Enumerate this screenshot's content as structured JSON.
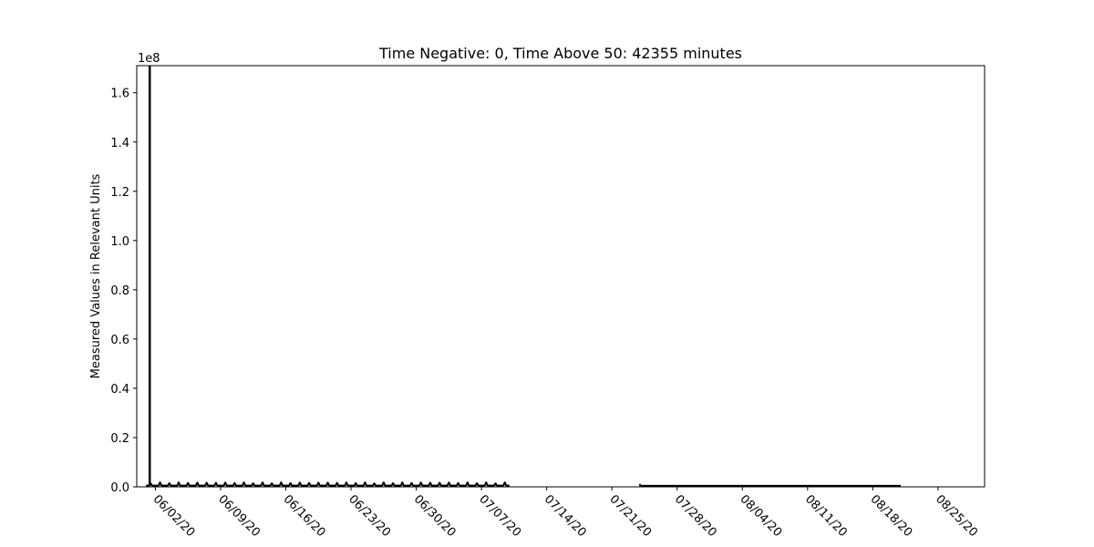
{
  "chart_data": {
    "type": "line",
    "title": "Time Negative: 0, Time Above 50: 42355 minutes",
    "xlabel": "",
    "ylabel": "Measured Values in Relevant Units",
    "y_offset_label": "1e8",
    "x_axis_type": "date",
    "xlim": [
      "2020-05-31",
      "2020-08-30"
    ],
    "ylim": [
      0,
      1.71
    ],
    "y_scale_multiplier": 100000000,
    "x_tick_labels": [
      "06/02/20",
      "06/09/20",
      "06/16/20",
      "06/23/20",
      "06/30/20",
      "07/07/20",
      "07/14/20",
      "07/21/20",
      "07/28/20",
      "08/04/20",
      "08/11/20",
      "08/18/20",
      "08/25/20"
    ],
    "x_tick_dates": [
      "2020-06-02",
      "2020-06-09",
      "2020-06-16",
      "2020-06-23",
      "2020-06-30",
      "2020-07-07",
      "2020-07-14",
      "2020-07-21",
      "2020-07-28",
      "2020-08-04",
      "2020-08-11",
      "2020-08-18",
      "2020-08-25"
    ],
    "y_tick_labels": [
      "0.0",
      "0.2",
      "0.4",
      "0.6",
      "0.8",
      "1.0",
      "1.2",
      "1.4",
      "1.6"
    ],
    "y_tick_values": [
      0,
      0.2,
      0.4,
      0.6,
      0.8,
      1.0,
      1.2,
      1.4,
      1.6
    ],
    "grid": false,
    "legend": "none",
    "series_color": "#000000",
    "segments": [
      {
        "start": "2020-06-01",
        "end": "2020-07-10",
        "baseline": 0.005,
        "daily_peak": 0.018,
        "spike": {
          "date": "2020-06-01",
          "value": 1.71
        }
      },
      {
        "start": "2020-07-24",
        "end": "2020-08-21",
        "baseline": 0.004,
        "start_peak": 0.012
      }
    ]
  }
}
